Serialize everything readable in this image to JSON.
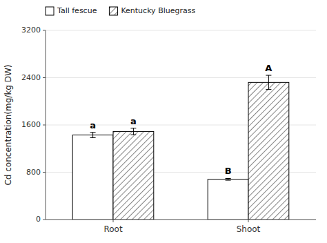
{
  "chart_data": {
    "type": "bar",
    "categories": [
      "Root",
      "Shoot"
    ],
    "series": [
      {
        "name": "Tall fescue",
        "color": "#ffffff",
        "values": [
          1430,
          680
        ],
        "errors": [
          45,
          15
        ],
        "letters": [
          "a",
          "B"
        ]
      },
      {
        "name": "Kentucky Bluegrass",
        "color": "#ffffff",
        "values": [
          1490,
          2320
        ],
        "errors": [
          55,
          120
        ],
        "letters": [
          "a",
          "A"
        ]
      }
    ],
    "ylabel": "Cd concentration(mg/kg DW)",
    "ylim": [
      0,
      3200
    ],
    "yticks": [
      0,
      800,
      1600,
      2400,
      3200
    ],
    "legend": "upper left"
  }
}
